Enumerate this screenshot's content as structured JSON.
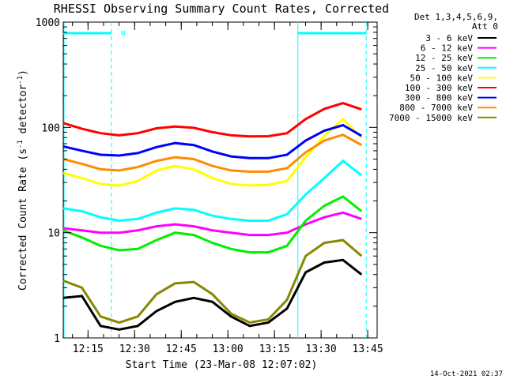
{
  "chart_data": {
    "type": "line",
    "title": "RHESSI Observing Summary Count Rates, Corrected",
    "xlabel": "Start Time (23-Mar-08 12:07:02)",
    "ylabel_main": "Corrected Count Rate (s",
    "ylabel_sup1": "-1",
    "ylabel_mid": " detector",
    "ylabel_sup2": "-1",
    "ylabel_end": ")",
    "y_scale": "log",
    "ylim": [
      1,
      1000
    ],
    "xlim_minutes": [
      0,
      101
    ],
    "x_tick_labels": [
      "12:15",
      "12:30",
      "12:45",
      "13:00",
      "13:15",
      "13:30",
      "13:45"
    ],
    "y_tick_labels": [
      "1",
      "10",
      "100",
      "1000"
    ],
    "legend_header": [
      "Det 1,3,4,5,6,9,",
      "Att 0"
    ],
    "night_flag_label": "N",
    "day_night_boundaries_minutes": [
      15.5,
      75.5,
      97.5
    ],
    "timestamp": "14-Oct-2021 02:37",
    "series": [
      {
        "name": "3 - 6 keV",
        "color": "#000000",
        "values": [
          2.4,
          2.5,
          1.3,
          1.2,
          1.3,
          1.8,
          2.2,
          2.4,
          2.2,
          1.6,
          1.3,
          1.4,
          1.9,
          4.2,
          5.2,
          5.5,
          4.0
        ]
      },
      {
        "name": "6 - 12 keV",
        "color": "#ff00ff",
        "values": [
          11,
          10.5,
          10,
          10,
          10.5,
          11.5,
          12,
          11.5,
          10.5,
          10,
          9.5,
          9.5,
          10,
          12,
          14,
          15.5,
          13.5
        ]
      },
      {
        "name": "12 - 25 keV",
        "color": "#00ee00",
        "values": [
          10.5,
          9,
          7.5,
          6.8,
          7,
          8.5,
          10,
          9.5,
          8,
          7,
          6.5,
          6.5,
          7.5,
          13,
          18,
          22,
          16
        ]
      },
      {
        "name": "25 - 50 keV",
        "color": "#00ffff",
        "values": [
          17,
          16,
          14,
          13,
          13.5,
          15.5,
          17,
          16.5,
          14.5,
          13.5,
          13,
          13,
          15,
          23,
          33,
          48,
          35
        ]
      },
      {
        "name": "50 - 100 keV",
        "color": "#ffff00",
        "values": [
          37,
          33,
          29,
          28,
          31,
          39,
          43,
          40,
          33,
          29,
          28,
          28.5,
          31,
          52,
          83,
          120,
          80
        ]
      },
      {
        "name": "100 - 300 keV",
        "color": "#ff0000",
        "values": [
          110,
          97,
          88,
          84,
          88,
          98,
          102,
          99,
          90,
          84,
          82,
          82.5,
          88,
          120,
          150,
          170,
          148
        ]
      },
      {
        "name": "300 - 800 keV",
        "color": "#0000ff",
        "values": [
          66,
          60,
          55,
          54,
          57,
          65,
          71,
          68,
          59,
          53,
          51,
          51,
          55,
          75,
          93,
          105,
          83
        ]
      },
      {
        "name": "800 - 7000 keV",
        "color": "#ff8c00",
        "values": [
          50,
          45,
          40,
          39,
          42,
          48,
          52,
          50,
          43,
          39,
          38,
          38,
          41,
          58,
          75,
          85,
          68
        ]
      },
      {
        "name": "7000 - 15000 keV",
        "color": "#888800",
        "values": [
          3.5,
          3.0,
          1.6,
          1.4,
          1.6,
          2.6,
          3.3,
          3.4,
          2.6,
          1.7,
          1.4,
          1.5,
          2.3,
          6.0,
          8.0,
          8.5,
          6.0
        ]
      }
    ],
    "series_x_minutes": [
      0,
      6,
      12,
      18,
      24,
      30,
      36,
      42,
      48,
      54,
      60,
      66,
      72,
      78,
      84,
      90,
      96
    ]
  }
}
